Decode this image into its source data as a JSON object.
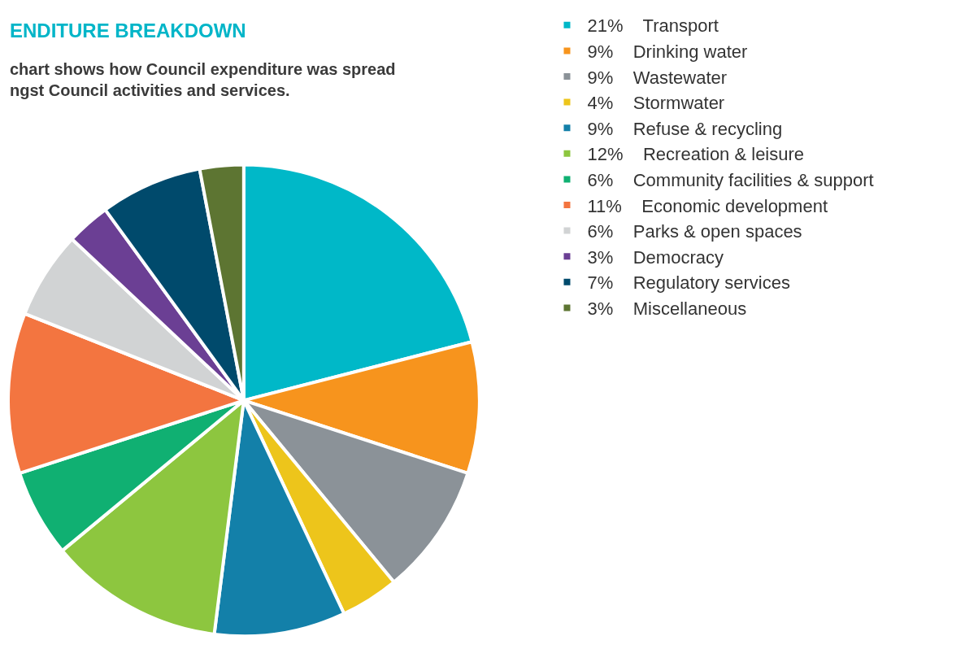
{
  "chart_data": {
    "type": "pie",
    "title": "ENDITURE BREAKDOWN",
    "subtitle": "chart shows how Council expenditure was spread\nngst Council activities and services.",
    "categories": [
      "Transport",
      "Drinking water",
      "Wastewater",
      "Stormwater",
      "Refuse & recycling",
      "Recreation & leisure",
      "Community facilities & support",
      "Economic development",
      "Parks & open spaces",
      "Democracy",
      "Regulatory services",
      "Miscellaneous"
    ],
    "values": [
      21,
      9,
      9,
      4,
      9,
      12,
      6,
      11,
      6,
      3,
      7,
      3
    ],
    "value_labels": [
      "21%",
      "9%",
      "9%",
      "4%",
      "9%",
      "12%",
      "6%",
      "11%",
      "6%",
      "3%",
      "7%",
      "3%"
    ],
    "colors": [
      "#00b8c8",
      "#f7941d",
      "#8b9298",
      "#edc51b",
      "#1380a9",
      "#8dc63f",
      "#10b072",
      "#f37540",
      "#d1d3d4",
      "#6b3f94",
      "#004a6c",
      "#5d7532"
    ],
    "legend": "right"
  }
}
